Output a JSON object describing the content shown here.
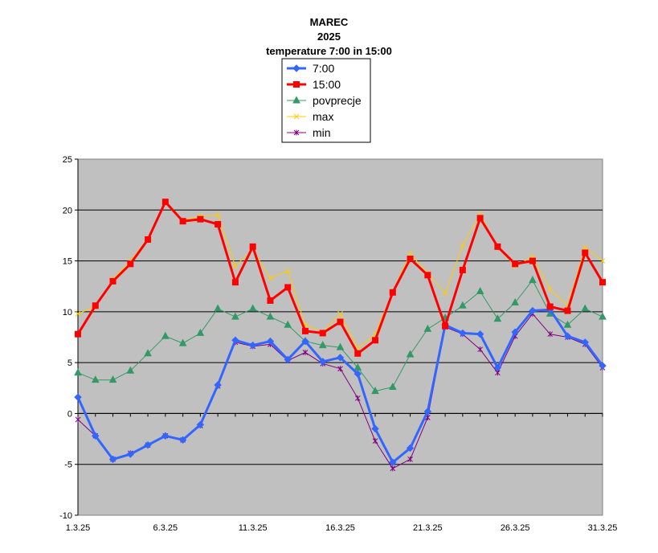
{
  "chart_data": {
    "type": "line",
    "title_lines": [
      "MAREC",
      "2025",
      "temperature 7:00 in 15:00"
    ],
    "x": [
      "1.3.25",
      "2.3.25",
      "3.3.25",
      "4.3.25",
      "5.3.25",
      "6.3.25",
      "7.3.25",
      "8.3.25",
      "9.3.25",
      "10.3.25",
      "11.3.25",
      "12.3.25",
      "13.3.25",
      "14.3.25",
      "15.3.25",
      "16.3.25",
      "17.3.25",
      "18.3.25",
      "19.3.25",
      "20.3.25",
      "21.3.25",
      "22.3.25",
      "23.3.25",
      "24.3.25",
      "25.3.25",
      "26.3.25",
      "27.3.25",
      "28.3.25",
      "29.3.25",
      "30.3.25",
      "31.3.25"
    ],
    "x_tick_labels": [
      "1.3.25",
      "6.3.25",
      "11.3.25",
      "16.3.25",
      "21.3.25",
      "26.3.25",
      "31.3.25"
    ],
    "ylim": [
      -10,
      25
    ],
    "y_ticks": [
      -10,
      -5,
      0,
      5,
      10,
      15,
      20,
      25
    ],
    "grid": "horizontal",
    "plot_background": "#c0c0c0",
    "legend_position": "top-center",
    "series": [
      {
        "name": "7:00",
        "color": "#3366ff",
        "marker": "diamond",
        "values": [
          1.6,
          -2.2,
          -4.5,
          -4.0,
          -3.1,
          -2.2,
          -2.6,
          -1.1,
          2.8,
          7.2,
          6.7,
          7.1,
          5.3,
          7.1,
          5.1,
          5.5,
          3.9,
          -1.5,
          -4.8,
          -3.4,
          0.2,
          8.7,
          7.9,
          7.8,
          4.5,
          8.0,
          10.1,
          10.2,
          7.6,
          7.0,
          4.7
        ]
      },
      {
        "name": "15:00",
        "color": "#ff0000",
        "marker": "square",
        "values": [
          7.8,
          10.6,
          13.0,
          14.7,
          17.1,
          20.8,
          18.9,
          19.1,
          18.6,
          12.9,
          16.4,
          11.1,
          12.4,
          8.1,
          7.9,
          9.0,
          5.9,
          7.2,
          11.9,
          15.2,
          13.6,
          8.6,
          14.1,
          19.2,
          16.4,
          14.7,
          15.0,
          10.5,
          10.1,
          15.8,
          12.9
        ]
      },
      {
        "name": "povprecje",
        "color": "#339966",
        "marker": "triangle",
        "values": [
          4.0,
          3.3,
          3.3,
          4.2,
          5.9,
          7.6,
          6.9,
          7.9,
          10.3,
          9.5,
          10.3,
          9.5,
          8.7,
          7.1,
          6.7,
          6.5,
          4.5,
          2.2,
          2.6,
          5.8,
          8.3,
          9.4,
          10.6,
          12.0,
          9.3,
          10.9,
          13.1,
          9.8,
          8.7,
          10.3,
          9.5
        ]
      },
      {
        "name": "max",
        "color": "#ffcc00",
        "marker": "x",
        "values": [
          9.8,
          10.5,
          13.2,
          15.0,
          17.2,
          20.9,
          19.0,
          19.4,
          19.5,
          14.5,
          16.1,
          13.3,
          14.0,
          8.7,
          8.0,
          9.8,
          6.4,
          7.8,
          12.0,
          15.7,
          13.8,
          11.8,
          16.5,
          19.6,
          16.3,
          14.5,
          15.4,
          12.2,
          10.6,
          16.3,
          15.0
        ]
      },
      {
        "name": "min",
        "color": "#800080",
        "marker": "star",
        "values": [
          -0.6,
          -2.2,
          -4.5,
          -3.9,
          -3.1,
          -2.2,
          -2.6,
          -1.2,
          2.7,
          7.0,
          6.6,
          6.8,
          5.2,
          6.0,
          4.9,
          4.4,
          1.5,
          -2.7,
          -5.4,
          -4.5,
          -0.4,
          8.5,
          7.8,
          6.3,
          4.0,
          7.6,
          9.8,
          7.8,
          7.5,
          6.8,
          4.5
        ]
      }
    ]
  }
}
